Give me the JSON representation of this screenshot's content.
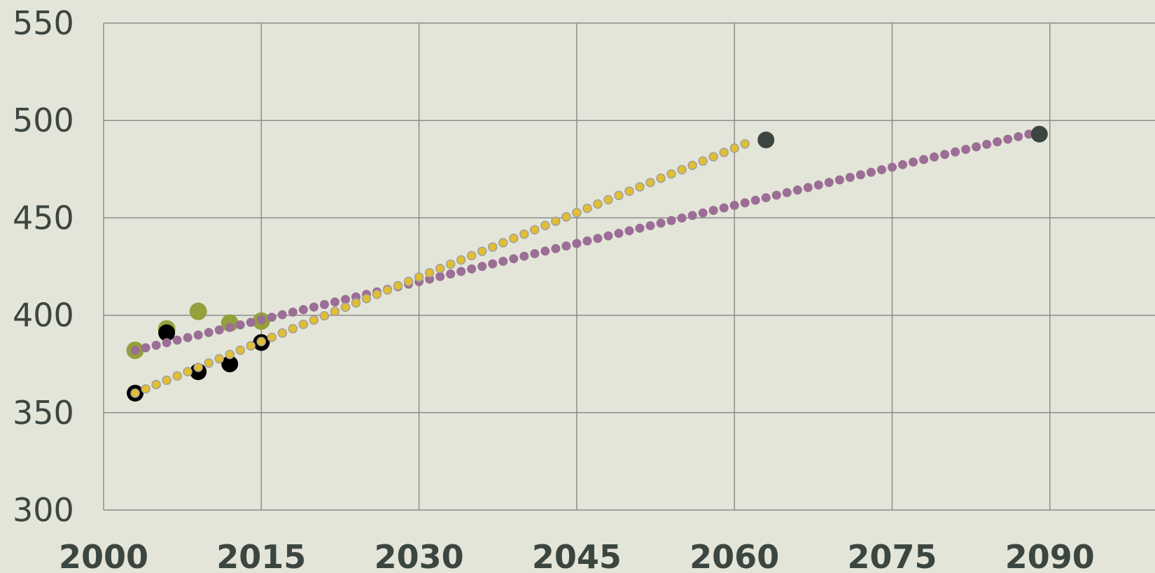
{
  "chart_data": {
    "type": "scatter",
    "title": "",
    "xlabel": "",
    "ylabel": "",
    "xlim": [
      2000,
      2100
    ],
    "ylim": [
      300,
      550
    ],
    "x_ticks": [
      "2000",
      "2015",
      "2030",
      "2045",
      "2060",
      "2075",
      "2090"
    ],
    "y_ticks": [
      "550",
      "500",
      "450",
      "400",
      "350",
      "300"
    ],
    "grid": true,
    "legend": "none",
    "colors": {
      "background": "#e4e5d9",
      "grid": "#8c8c8c",
      "black_points": "#000000",
      "green_points": "#93a03c",
      "yellow_trend_fill": "#e1be32",
      "yellow_trend_edge": "#a0a0a0",
      "purple_trend": "#9b6e96",
      "endpoints": "#3c4640"
    },
    "series": [
      {
        "marker": "black-dot",
        "points": [
          [
            2003,
            360
          ],
          [
            2006,
            391
          ],
          [
            2009,
            371
          ],
          [
            2012,
            375
          ],
          [
            2015,
            386
          ]
        ]
      },
      {
        "marker": "green-dot",
        "points": [
          [
            2003,
            382
          ],
          [
            2006,
            393
          ],
          [
            2009,
            402
          ],
          [
            2012,
            396
          ],
          [
            2015,
            397
          ]
        ]
      },
      {
        "marker": "yellow-trend-dots",
        "x_start": 2003,
        "x_end": 2061,
        "y_start": 360,
        "y_end": 488
      },
      {
        "marker": "purple-trend-dots",
        "x_start": 2003,
        "x_end": 2088,
        "y_start": 382,
        "y_end": 493
      },
      {
        "marker": "endpoint-dot",
        "points": [
          [
            2063,
            490
          ],
          [
            2089,
            493
          ]
        ]
      }
    ]
  }
}
